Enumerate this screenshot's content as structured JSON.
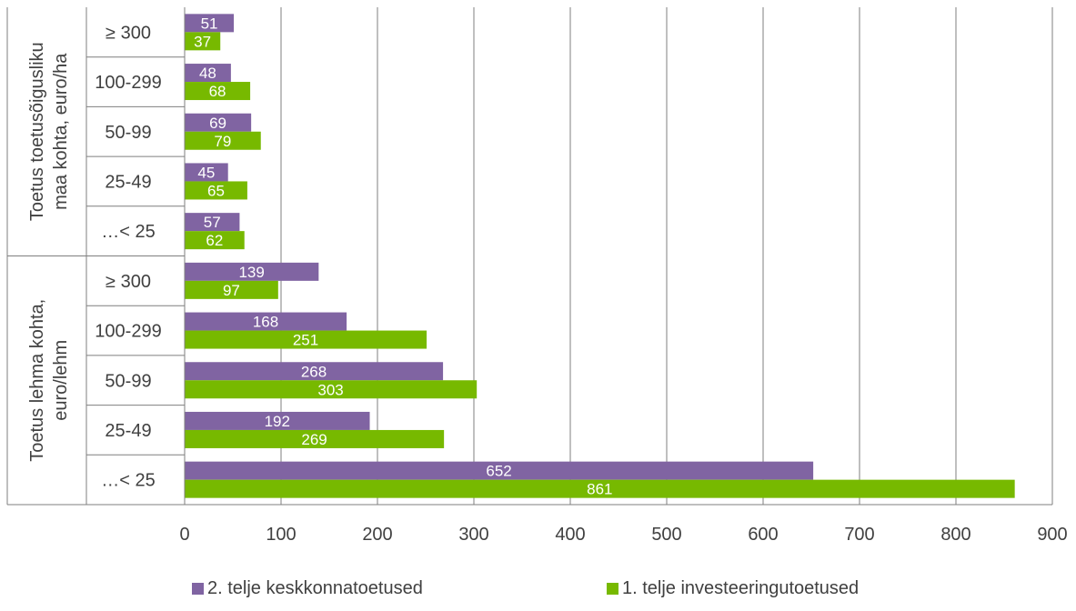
{
  "chart_data": {
    "type": "bar",
    "orientation": "horizontal",
    "groups": [
      {
        "label": "Toetus toetusõigusliku maa kohta, euro/ha",
        "label_lines": [
          "Toetus toetusõigusliku",
          "maa kohta, euro/ha"
        ],
        "categories": [
          "≥ 300",
          "100-299",
          "50-99",
          "25-49",
          "…< 25"
        ],
        "series": [
          {
            "name": "2. telje keskkonnatoetused",
            "values": [
              51,
              48,
              69,
              45,
              57
            ]
          },
          {
            "name": "1. telje investeeringutoetused",
            "values": [
              37,
              68,
              79,
              65,
              62
            ]
          }
        ]
      },
      {
        "label": "Toetus lehma kohta, euro/lehm",
        "label_lines": [
          "Toetus lehma kohta,",
          "euro/lehm"
        ],
        "categories": [
          "≥ 300",
          "100-299",
          "50-99",
          "25-49",
          "…< 25"
        ],
        "series": [
          {
            "name": "2. telje keskkonnatoetused",
            "values": [
              139,
              168,
              268,
              192,
              652
            ]
          },
          {
            "name": "1. telje investeeringutoetused",
            "values": [
              97,
              251,
              303,
              269,
              861
            ]
          }
        ]
      }
    ],
    "xlim": [
      0,
      900
    ],
    "xticks": [
      0,
      100,
      200,
      300,
      400,
      500,
      600,
      700,
      800,
      900
    ],
    "grid": "vertical",
    "legend_position": "bottom",
    "legend": [
      "2. telje keskkonnatoetused",
      "1. telje investeeringutoetused"
    ],
    "colors": [
      "#8064a2",
      "#77b900"
    ],
    "title": "",
    "xlabel": "",
    "ylabel": ""
  }
}
